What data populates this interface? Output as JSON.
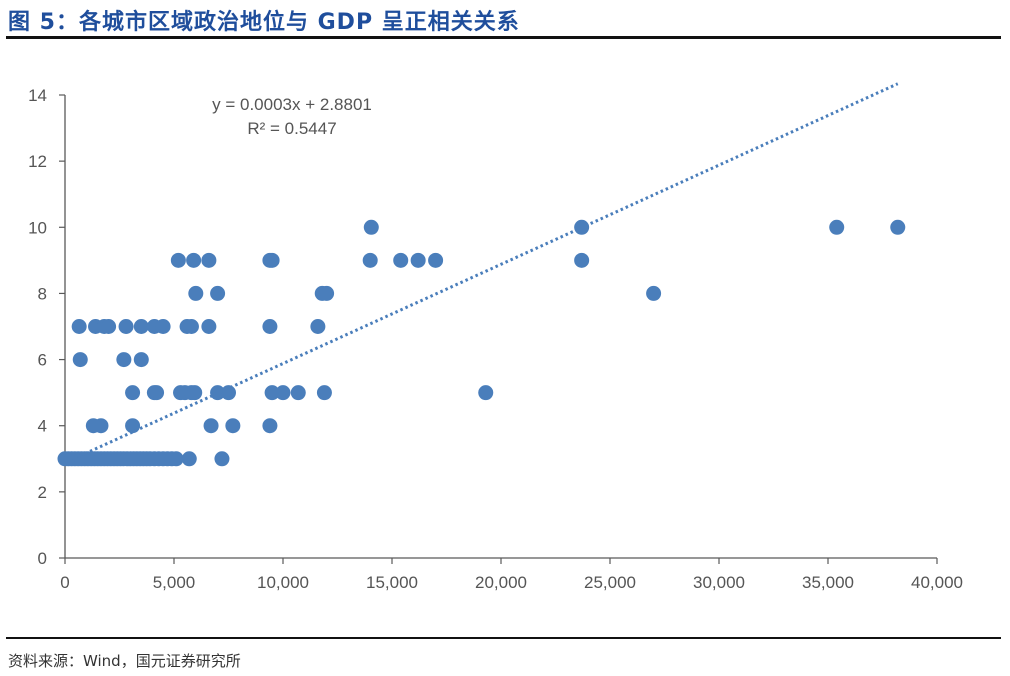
{
  "figure": {
    "title": "图 5：各城市区域政治地位与 GDP 呈正相关关系",
    "source": "资料来源：Wind，国元证券研究所"
  },
  "colors": {
    "title": "#1f4e9c",
    "points": "#4a7ebb",
    "trendline": "#4a7ebb",
    "axis": "#595959"
  },
  "chart_data": {
    "type": "scatter",
    "title": "",
    "xlabel": "",
    "ylabel": "",
    "xlim": [
      0,
      40000
    ],
    "ylim": [
      0,
      14
    ],
    "x_ticks": [
      0,
      5000,
      10000,
      15000,
      20000,
      25000,
      30000,
      35000,
      40000
    ],
    "x_tick_labels": [
      "0",
      "5,000",
      "10,000",
      "15,000",
      "20,000",
      "25,000",
      "30,000",
      "35,000",
      "40,000"
    ],
    "y_ticks": [
      0,
      2,
      4,
      6,
      8,
      10,
      12,
      14
    ],
    "y_tick_labels": [
      "0",
      "2",
      "4",
      "6",
      "8",
      "10",
      "12",
      "14"
    ],
    "grid": false,
    "legend": "none",
    "trendline": {
      "type": "linear",
      "slope": 0.0003,
      "intercept": 2.8801,
      "x_range": [
        0,
        38200
      ],
      "equation_label": "y = 0.0003x  + 2.8801",
      "r2_label": "R² = 0.5447"
    },
    "points": [
      [
        0,
        3
      ],
      [
        150,
        3
      ],
      [
        300,
        3
      ],
      [
        450,
        3
      ],
      [
        600,
        3
      ],
      [
        750,
        3
      ],
      [
        900,
        3
      ],
      [
        1050,
        3
      ],
      [
        1200,
        3
      ],
      [
        1350,
        3
      ],
      [
        1500,
        3
      ],
      [
        1650,
        3
      ],
      [
        1800,
        3
      ],
      [
        1950,
        3
      ],
      [
        2100,
        3
      ],
      [
        2250,
        3
      ],
      [
        2400,
        3
      ],
      [
        2550,
        3
      ],
      [
        2700,
        3
      ],
      [
        2850,
        3
      ],
      [
        3000,
        3
      ],
      [
        3150,
        3
      ],
      [
        3300,
        3
      ],
      [
        3450,
        3
      ],
      [
        3600,
        3
      ],
      [
        3750,
        3
      ],
      [
        3900,
        3
      ],
      [
        4100,
        3
      ],
      [
        4300,
        3
      ],
      [
        4500,
        3
      ],
      [
        4700,
        3
      ],
      [
        4900,
        3
      ],
      [
        5100,
        3
      ],
      [
        5700,
        3
      ],
      [
        7200,
        3
      ],
      [
        1300,
        4
      ],
      [
        1650,
        4
      ],
      [
        3100,
        4
      ],
      [
        6700,
        4
      ],
      [
        7700,
        4
      ],
      [
        9400,
        4
      ],
      [
        3100,
        5
      ],
      [
        4100,
        5
      ],
      [
        4200,
        5
      ],
      [
        5300,
        5
      ],
      [
        5500,
        5
      ],
      [
        5800,
        5
      ],
      [
        5950,
        5
      ],
      [
        7000,
        5
      ],
      [
        7500,
        5
      ],
      [
        9500,
        5
      ],
      [
        10000,
        5
      ],
      [
        10700,
        5
      ],
      [
        11900,
        5
      ],
      [
        19300,
        5
      ],
      [
        700,
        6
      ],
      [
        2700,
        6
      ],
      [
        3500,
        6
      ],
      [
        650,
        7
      ],
      [
        1400,
        7
      ],
      [
        1800,
        7
      ],
      [
        2000,
        7
      ],
      [
        2800,
        7
      ],
      [
        3500,
        7
      ],
      [
        4100,
        7
      ],
      [
        4500,
        7
      ],
      [
        5600,
        7
      ],
      [
        5800,
        7
      ],
      [
        6600,
        7
      ],
      [
        9400,
        7
      ],
      [
        11600,
        7
      ],
      [
        6000,
        8
      ],
      [
        7000,
        8
      ],
      [
        11800,
        8
      ],
      [
        12000,
        8
      ],
      [
        27000,
        8
      ],
      [
        5200,
        9
      ],
      [
        5900,
        9
      ],
      [
        6600,
        9
      ],
      [
        9400,
        9
      ],
      [
        9500,
        9
      ],
      [
        14000,
        9
      ],
      [
        15400,
        9
      ],
      [
        16200,
        9
      ],
      [
        17000,
        9
      ],
      [
        23700,
        9
      ],
      [
        14050,
        10
      ],
      [
        23700,
        10
      ],
      [
        35400,
        10
      ],
      [
        38200,
        10
      ]
    ]
  }
}
